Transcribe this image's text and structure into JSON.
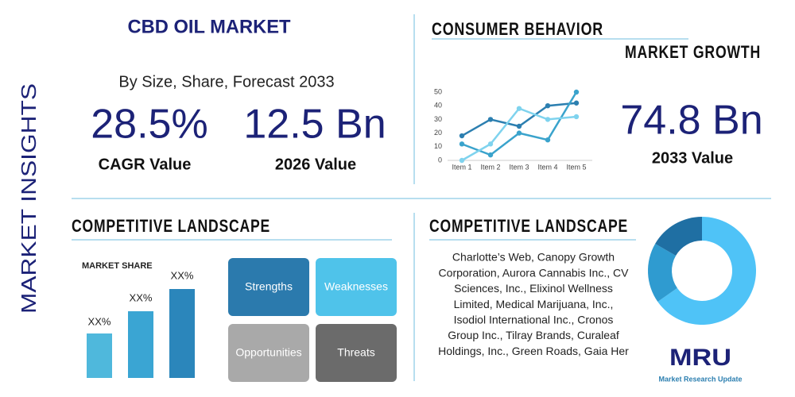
{
  "side_label": "MARKET INSIGHTS",
  "header": {
    "title": "CBD OIL MARKET",
    "subtitle": "By Size, Share, Forecast 2033"
  },
  "stats": [
    {
      "value": "28.5%",
      "label": "CAGR Value"
    },
    {
      "value": "12.5 Bn",
      "label": "2026 Value"
    },
    {
      "value": "74.8 Bn",
      "label": "2033 Value"
    }
  ],
  "consumer": {
    "title": "CONSUMER BEHAVIOR",
    "subtitle": "MARKET GROWTH"
  },
  "chart_data": {
    "type": "line",
    "categories": [
      "Item 1",
      "Item 2",
      "Item 3",
      "Item 4",
      "Item 5"
    ],
    "series": [
      {
        "color": "#2c7fb0",
        "values": [
          18,
          30,
          25,
          40,
          42
        ]
      },
      {
        "color": "#3aa3cc",
        "values": [
          12,
          4,
          20,
          15,
          50
        ]
      },
      {
        "color": "#7fd3ee",
        "values": [
          0,
          12,
          38,
          30,
          32
        ]
      }
    ],
    "ylim": [
      0,
      50
    ],
    "yticks": [
      0,
      10,
      20,
      30,
      40,
      50
    ]
  },
  "competitive": {
    "title": "COMPETITIVE LANDSCAPE",
    "market_share_label": "MARKET SHARE",
    "bar_labels": [
      "XX%",
      "XX%",
      "XX%"
    ],
    "swot": [
      "Strengths",
      "Weaknesses",
      "Opportunities",
      "Threats"
    ]
  },
  "players": {
    "title": "COMPETITIVE LANDSCAPE",
    "lines": [
      "Charlotte’s Web, Canopy Growth",
      "Corporation, Aurora Cannabis Inc., CV",
      "Sciences, Inc., Elixinol Wellness",
      "Limited, Medical Marijuana, Inc.,",
      "Isodiol International Inc., Cronos",
      "Group Inc., Tilray Brands, Curaleaf",
      "Holdings, Inc., Green Roads, Gaia Her"
    ]
  },
  "logo": {
    "mark": "MRU",
    "name": "Market Research Update"
  }
}
